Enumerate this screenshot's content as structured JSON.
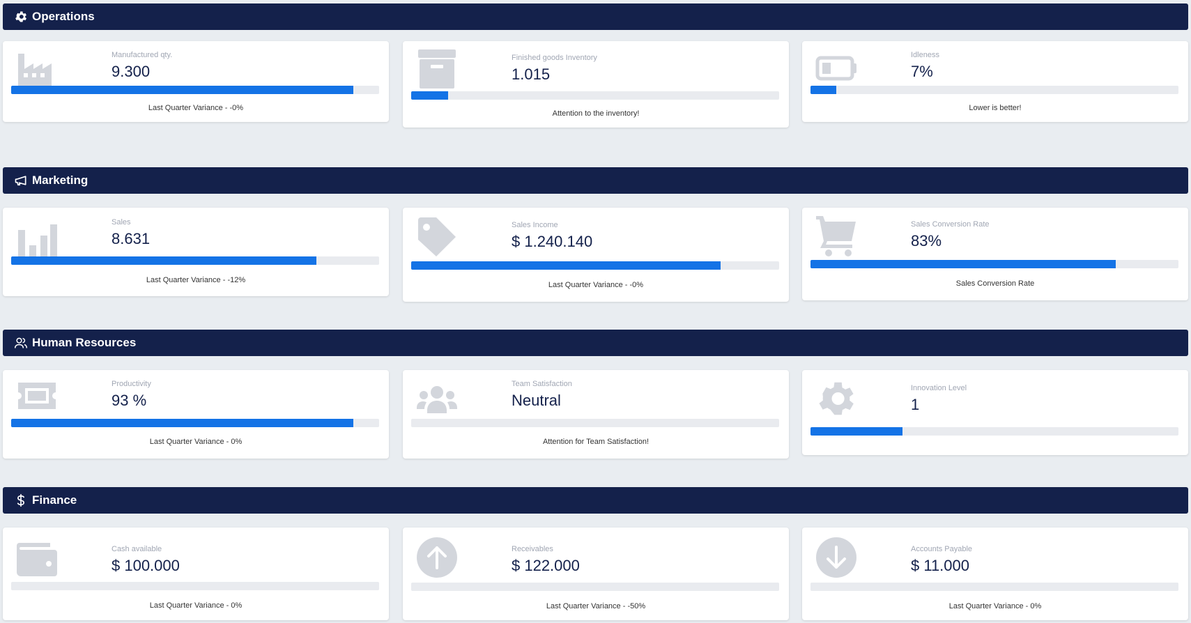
{
  "colors": {
    "header_bg": "#14214b",
    "bar_fill": "#1473e6",
    "bar_track": "#e9ebef",
    "icon_gray": "#d3d6dc",
    "page_bg": "#e9edf1"
  },
  "sections": [
    {
      "title": "Operations",
      "icon": "gear-icon",
      "cards": [
        {
          "icon": "factory-icon",
          "label": "Manufactured qty.",
          "value": "9.300",
          "progress": 0.93,
          "note": "Last Quarter Variance - -0%"
        },
        {
          "icon": "archive-box-icon",
          "label": "Finished goods Inventory",
          "value": "1.015",
          "progress": 0.1,
          "note": "Attention to the inventory!"
        },
        {
          "icon": "battery-low-icon",
          "label": "Idleness",
          "value": "7%",
          "progress": 0.07,
          "note": "Lower is better!"
        }
      ]
    },
    {
      "title": "Marketing",
      "icon": "megaphone-icon",
      "cards": [
        {
          "icon": "bar-chart-icon",
          "label": "Sales",
          "value": "8.631",
          "progress": 0.83,
          "note": "Last Quarter Variance - -12%"
        },
        {
          "icon": "tag-icon",
          "label": "Sales Income",
          "value": "$ 1.240.140",
          "progress": 0.84,
          "note": "Last Quarter Variance - -0%"
        },
        {
          "icon": "shopping-cart-icon",
          "label": "Sales Conversion Rate",
          "value": "83%",
          "progress": 0.83,
          "note": "Sales Conversion Rate"
        }
      ]
    },
    {
      "title": "Human Resources",
      "icon": "users-icon",
      "cards": [
        {
          "icon": "ticket-icon",
          "label": "Productivity",
          "value": "93 %",
          "progress": 0.93,
          "note": "Last Quarter Variance - 0%"
        },
        {
          "icon": "team-icon",
          "label": "Team Satisfaction",
          "value": "Neutral",
          "progress": 0,
          "note": "Attention for Team Satisfaction!"
        },
        {
          "icon": "cog-icon",
          "label": "Innovation Level",
          "value": "1",
          "progress": 0.25,
          "note": ""
        }
      ]
    },
    {
      "title": "Finance",
      "icon": "dollar-icon",
      "cards": [
        {
          "icon": "wallet-icon",
          "label": "Cash available",
          "value": "$ 100.000",
          "progress": 0,
          "note": "Last Quarter Variance - 0%"
        },
        {
          "icon": "arrow-up-circle-icon",
          "label": "Receivables",
          "value": "$ 122.000",
          "progress": 0,
          "note": "Last Quarter Variance - -50%"
        },
        {
          "icon": "arrow-down-circle-icon",
          "label": "Accounts Payable",
          "value": "$ 11.000",
          "progress": 0,
          "note": "Last Quarter Variance - 0%"
        }
      ]
    }
  ]
}
